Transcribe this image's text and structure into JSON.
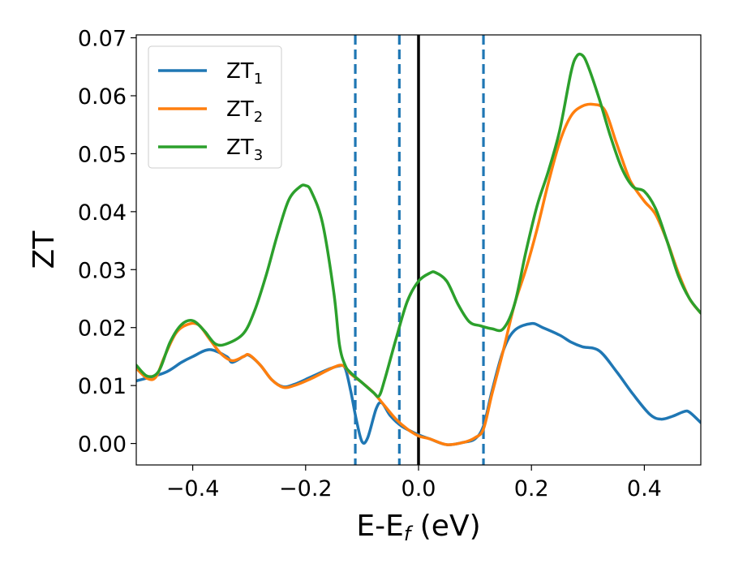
{
  "chart_data": {
    "type": "line",
    "title": "",
    "xlabel": "E-E",
    "xlabel_subscript": "f",
    "xlabel_unit": " (eV)",
    "ylabel": "ZT",
    "xlim": [
      -0.5,
      0.5
    ],
    "ylim": [
      -0.0037,
      0.0705
    ],
    "x_ticks": [
      -0.4,
      -0.2,
      0.0,
      0.2,
      0.4
    ],
    "x_tick_labels": [
      "−0.4",
      "−0.2",
      "0.0",
      "0.2",
      "0.4"
    ],
    "y_ticks": [
      0.0,
      0.01,
      0.02,
      0.03,
      0.04,
      0.05,
      0.06,
      0.07
    ],
    "y_tick_labels": [
      "0.00",
      "0.01",
      "0.02",
      "0.03",
      "0.04",
      "0.05",
      "0.06",
      "0.07"
    ],
    "grid": false,
    "legend_position": "top-left",
    "vlines": [
      {
        "x": -0.112,
        "style": "dashed",
        "color": "#1f77b4"
      },
      {
        "x": -0.034,
        "style": "dashed",
        "color": "#1f77b4"
      },
      {
        "x": 0.0,
        "style": "solid",
        "color": "#000000"
      },
      {
        "x": 0.115,
        "style": "dashed",
        "color": "#1f77b4"
      }
    ],
    "series": [
      {
        "name": "ZT",
        "name_subscript": "1",
        "color": "#1f77b4",
        "points": [
          [
            -0.5,
            0.0108
          ],
          [
            -0.45,
            0.0122
          ],
          [
            -0.42,
            0.014
          ],
          [
            -0.4,
            0.015
          ],
          [
            -0.37,
            0.0162
          ],
          [
            -0.34,
            0.015
          ],
          [
            -0.33,
            0.014
          ],
          [
            -0.31,
            0.015
          ],
          [
            -0.3,
            0.0152
          ],
          [
            -0.28,
            0.0135
          ],
          [
            -0.26,
            0.011
          ],
          [
            -0.24,
            0.0098
          ],
          [
            -0.22,
            0.0102
          ],
          [
            -0.19,
            0.0115
          ],
          [
            -0.16,
            0.0128
          ],
          [
            -0.14,
            0.0134
          ],
          [
            -0.13,
            0.013
          ],
          [
            -0.12,
            0.009
          ],
          [
            -0.11,
            0.004
          ],
          [
            -0.1,
            0.0003
          ],
          [
            -0.09,
            0.001
          ],
          [
            -0.075,
            0.006
          ],
          [
            -0.065,
            0.007
          ],
          [
            -0.05,
            0.0048
          ],
          [
            -0.03,
            0.003
          ],
          [
            0.0,
            0.0015
          ],
          [
            0.02,
            0.0008
          ],
          [
            0.05,
            -0.0002
          ],
          [
            0.08,
            0.0002
          ],
          [
            0.1,
            0.0008
          ],
          [
            0.115,
            0.003
          ],
          [
            0.13,
            0.009
          ],
          [
            0.15,
            0.016
          ],
          [
            0.17,
            0.0195
          ],
          [
            0.2,
            0.0207
          ],
          [
            0.22,
            0.02
          ],
          [
            0.25,
            0.0187
          ],
          [
            0.27,
            0.0175
          ],
          [
            0.29,
            0.0167
          ],
          [
            0.32,
            0.016
          ],
          [
            0.35,
            0.0125
          ],
          [
            0.38,
            0.0085
          ],
          [
            0.41,
            0.005
          ],
          [
            0.43,
            0.0042
          ],
          [
            0.45,
            0.0047
          ],
          [
            0.47,
            0.0055
          ],
          [
            0.48,
            0.0054
          ],
          [
            0.5,
            0.0036
          ]
        ]
      },
      {
        "name": "ZT",
        "name_subscript": "2",
        "color": "#ff7f0e",
        "points": [
          [
            -0.5,
            0.013
          ],
          [
            -0.48,
            0.0112
          ],
          [
            -0.465,
            0.0115
          ],
          [
            -0.45,
            0.015
          ],
          [
            -0.43,
            0.019
          ],
          [
            -0.41,
            0.0205
          ],
          [
            -0.39,
            0.0205
          ],
          [
            -0.37,
            0.018
          ],
          [
            -0.35,
            0.0155
          ],
          [
            -0.33,
            0.0143
          ],
          [
            -0.31,
            0.015
          ],
          [
            -0.3,
            0.0153
          ],
          [
            -0.28,
            0.0135
          ],
          [
            -0.26,
            0.011
          ],
          [
            -0.24,
            0.0097
          ],
          [
            -0.22,
            0.01
          ],
          [
            -0.19,
            0.0112
          ],
          [
            -0.16,
            0.0127
          ],
          [
            -0.14,
            0.0135
          ],
          [
            -0.13,
            0.0132
          ],
          [
            -0.12,
            0.012
          ],
          [
            -0.1,
            0.0105
          ],
          [
            -0.08,
            0.0088
          ],
          [
            -0.06,
            0.0065
          ],
          [
            -0.04,
            0.0042
          ],
          [
            -0.02,
            0.0025
          ],
          [
            0.0,
            0.0013
          ],
          [
            0.02,
            0.0008
          ],
          [
            0.05,
            -0.0002
          ],
          [
            0.08,
            0.0002
          ],
          [
            0.1,
            0.001
          ],
          [
            0.115,
            0.0025
          ],
          [
            0.13,
            0.0085
          ],
          [
            0.15,
            0.016
          ],
          [
            0.17,
            0.024
          ],
          [
            0.19,
            0.03
          ],
          [
            0.21,
            0.037
          ],
          [
            0.23,
            0.045
          ],
          [
            0.25,
            0.052
          ],
          [
            0.27,
            0.0565
          ],
          [
            0.29,
            0.0582
          ],
          [
            0.31,
            0.0585
          ],
          [
            0.33,
            0.0575
          ],
          [
            0.35,
            0.052
          ],
          [
            0.37,
            0.0465
          ],
          [
            0.38,
            0.0445
          ],
          [
            0.4,
            0.0418
          ],
          [
            0.42,
            0.0395
          ],
          [
            0.44,
            0.035
          ],
          [
            0.46,
            0.0295
          ],
          [
            0.48,
            0.025
          ],
          [
            0.5,
            0.0225
          ]
        ]
      },
      {
        "name": "ZT",
        "name_subscript": "3",
        "color": "#2ca02c",
        "points": [
          [
            -0.5,
            0.0135
          ],
          [
            -0.48,
            0.0116
          ],
          [
            -0.46,
            0.0125
          ],
          [
            -0.44,
            0.0175
          ],
          [
            -0.42,
            0.0205
          ],
          [
            -0.4,
            0.0212
          ],
          [
            -0.38,
            0.0195
          ],
          [
            -0.36,
            0.0172
          ],
          [
            -0.34,
            0.0172
          ],
          [
            -0.31,
            0.019
          ],
          [
            -0.29,
            0.023
          ],
          [
            -0.27,
            0.029
          ],
          [
            -0.25,
            0.036
          ],
          [
            -0.23,
            0.042
          ],
          [
            -0.21,
            0.0443
          ],
          [
            -0.2,
            0.0445
          ],
          [
            -0.19,
            0.0435
          ],
          [
            -0.17,
            0.038
          ],
          [
            -0.15,
            0.026
          ],
          [
            -0.14,
            0.017
          ],
          [
            -0.13,
            0.0135
          ],
          [
            -0.12,
            0.0122
          ],
          [
            -0.1,
            0.0105
          ],
          [
            -0.08,
            0.0088
          ],
          [
            -0.07,
            0.0082
          ],
          [
            -0.06,
            0.011
          ],
          [
            -0.04,
            0.018
          ],
          [
            -0.02,
            0.0245
          ],
          [
            0.0,
            0.028
          ],
          [
            0.02,
            0.0294
          ],
          [
            0.03,
            0.0295
          ],
          [
            0.05,
            0.028
          ],
          [
            0.07,
            0.024
          ],
          [
            0.09,
            0.021
          ],
          [
            0.11,
            0.0203
          ],
          [
            0.13,
            0.0198
          ],
          [
            0.15,
            0.0198
          ],
          [
            0.17,
            0.024
          ],
          [
            0.19,
            0.033
          ],
          [
            0.21,
            0.041
          ],
          [
            0.23,
            0.047
          ],
          [
            0.25,
            0.054
          ],
          [
            0.27,
            0.064
          ],
          [
            0.28,
            0.0668
          ],
          [
            0.29,
            0.067
          ],
          [
            0.3,
            0.0652
          ],
          [
            0.32,
            0.0595
          ],
          [
            0.34,
            0.053
          ],
          [
            0.36,
            0.0475
          ],
          [
            0.38,
            0.0443
          ],
          [
            0.4,
            0.0435
          ],
          [
            0.42,
            0.0405
          ],
          [
            0.44,
            0.035
          ],
          [
            0.46,
            0.029
          ],
          [
            0.48,
            0.025
          ],
          [
            0.5,
            0.0225
          ]
        ]
      }
    ]
  }
}
